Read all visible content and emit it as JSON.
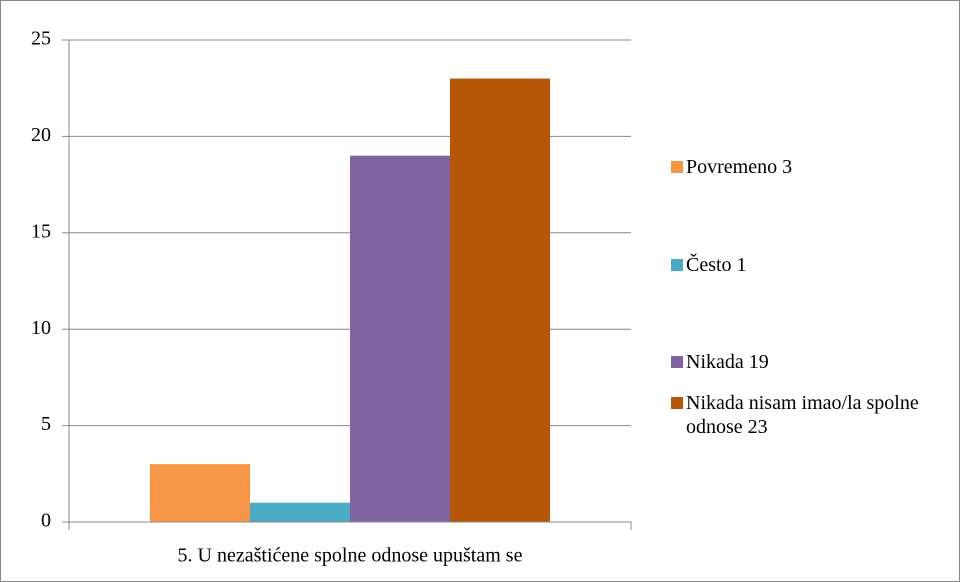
{
  "chart_data": {
    "type": "bar",
    "categories": [
      "5. U nezaštićene spolne odnose upuštam se"
    ],
    "series": [
      {
        "name": "Povremeno  3",
        "color": "#f79646",
        "values": [
          3
        ]
      },
      {
        "name": "Često  1",
        "color": "#4bacc6",
        "values": [
          1
        ]
      },
      {
        "name": "Nikada  19",
        "color": "#8064a2",
        "values": [
          19
        ]
      },
      {
        "name": "Nikada nisam imao/la spolne odnose  23",
        "color": "#b65708",
        "values": [
          23
        ]
      }
    ],
    "ylim": [
      0,
      25
    ],
    "yticks": [
      0,
      5,
      10,
      15,
      20,
      25
    ],
    "grid": true,
    "legend": "right"
  }
}
